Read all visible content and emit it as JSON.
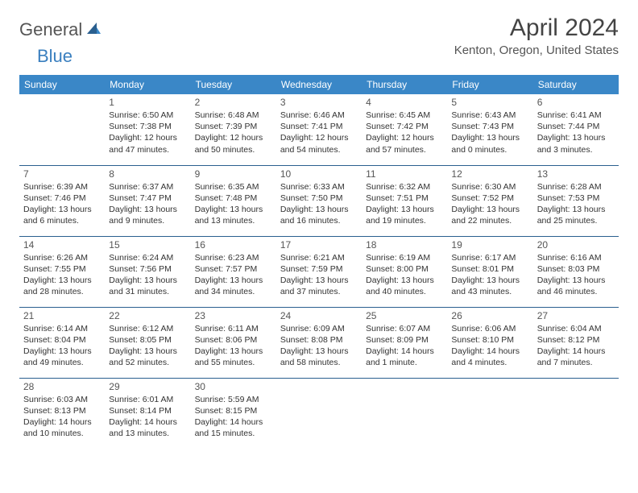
{
  "brand": {
    "part1": "General",
    "part2": "Blue"
  },
  "title": "April 2024",
  "location": "Kenton, Oregon, United States",
  "colors": {
    "header_bg": "#3a87c7",
    "header_text": "#ffffff",
    "rule": "#2a5f8f",
    "body_text": "#333333",
    "daynum": "#555555",
    "brand_gray": "#555555",
    "brand_blue": "#3a7fbf",
    "page_bg": "#ffffff"
  },
  "weekdays": [
    "Sunday",
    "Monday",
    "Tuesday",
    "Wednesday",
    "Thursday",
    "Friday",
    "Saturday"
  ],
  "weeks": [
    [
      null,
      {
        "d": "1",
        "sr": "Sunrise: 6:50 AM",
        "ss": "Sunset: 7:38 PM",
        "dl": "Daylight: 12 hours and 47 minutes."
      },
      {
        "d": "2",
        "sr": "Sunrise: 6:48 AM",
        "ss": "Sunset: 7:39 PM",
        "dl": "Daylight: 12 hours and 50 minutes."
      },
      {
        "d": "3",
        "sr": "Sunrise: 6:46 AM",
        "ss": "Sunset: 7:41 PM",
        "dl": "Daylight: 12 hours and 54 minutes."
      },
      {
        "d": "4",
        "sr": "Sunrise: 6:45 AM",
        "ss": "Sunset: 7:42 PM",
        "dl": "Daylight: 12 hours and 57 minutes."
      },
      {
        "d": "5",
        "sr": "Sunrise: 6:43 AM",
        "ss": "Sunset: 7:43 PM",
        "dl": "Daylight: 13 hours and 0 minutes."
      },
      {
        "d": "6",
        "sr": "Sunrise: 6:41 AM",
        "ss": "Sunset: 7:44 PM",
        "dl": "Daylight: 13 hours and 3 minutes."
      }
    ],
    [
      {
        "d": "7",
        "sr": "Sunrise: 6:39 AM",
        "ss": "Sunset: 7:46 PM",
        "dl": "Daylight: 13 hours and 6 minutes."
      },
      {
        "d": "8",
        "sr": "Sunrise: 6:37 AM",
        "ss": "Sunset: 7:47 PM",
        "dl": "Daylight: 13 hours and 9 minutes."
      },
      {
        "d": "9",
        "sr": "Sunrise: 6:35 AM",
        "ss": "Sunset: 7:48 PM",
        "dl": "Daylight: 13 hours and 13 minutes."
      },
      {
        "d": "10",
        "sr": "Sunrise: 6:33 AM",
        "ss": "Sunset: 7:50 PM",
        "dl": "Daylight: 13 hours and 16 minutes."
      },
      {
        "d": "11",
        "sr": "Sunrise: 6:32 AM",
        "ss": "Sunset: 7:51 PM",
        "dl": "Daylight: 13 hours and 19 minutes."
      },
      {
        "d": "12",
        "sr": "Sunrise: 6:30 AM",
        "ss": "Sunset: 7:52 PM",
        "dl": "Daylight: 13 hours and 22 minutes."
      },
      {
        "d": "13",
        "sr": "Sunrise: 6:28 AM",
        "ss": "Sunset: 7:53 PM",
        "dl": "Daylight: 13 hours and 25 minutes."
      }
    ],
    [
      {
        "d": "14",
        "sr": "Sunrise: 6:26 AM",
        "ss": "Sunset: 7:55 PM",
        "dl": "Daylight: 13 hours and 28 minutes."
      },
      {
        "d": "15",
        "sr": "Sunrise: 6:24 AM",
        "ss": "Sunset: 7:56 PM",
        "dl": "Daylight: 13 hours and 31 minutes."
      },
      {
        "d": "16",
        "sr": "Sunrise: 6:23 AM",
        "ss": "Sunset: 7:57 PM",
        "dl": "Daylight: 13 hours and 34 minutes."
      },
      {
        "d": "17",
        "sr": "Sunrise: 6:21 AM",
        "ss": "Sunset: 7:59 PM",
        "dl": "Daylight: 13 hours and 37 minutes."
      },
      {
        "d": "18",
        "sr": "Sunrise: 6:19 AM",
        "ss": "Sunset: 8:00 PM",
        "dl": "Daylight: 13 hours and 40 minutes."
      },
      {
        "d": "19",
        "sr": "Sunrise: 6:17 AM",
        "ss": "Sunset: 8:01 PM",
        "dl": "Daylight: 13 hours and 43 minutes."
      },
      {
        "d": "20",
        "sr": "Sunrise: 6:16 AM",
        "ss": "Sunset: 8:03 PM",
        "dl": "Daylight: 13 hours and 46 minutes."
      }
    ],
    [
      {
        "d": "21",
        "sr": "Sunrise: 6:14 AM",
        "ss": "Sunset: 8:04 PM",
        "dl": "Daylight: 13 hours and 49 minutes."
      },
      {
        "d": "22",
        "sr": "Sunrise: 6:12 AM",
        "ss": "Sunset: 8:05 PM",
        "dl": "Daylight: 13 hours and 52 minutes."
      },
      {
        "d": "23",
        "sr": "Sunrise: 6:11 AM",
        "ss": "Sunset: 8:06 PM",
        "dl": "Daylight: 13 hours and 55 minutes."
      },
      {
        "d": "24",
        "sr": "Sunrise: 6:09 AM",
        "ss": "Sunset: 8:08 PM",
        "dl": "Daylight: 13 hours and 58 minutes."
      },
      {
        "d": "25",
        "sr": "Sunrise: 6:07 AM",
        "ss": "Sunset: 8:09 PM",
        "dl": "Daylight: 14 hours and 1 minute."
      },
      {
        "d": "26",
        "sr": "Sunrise: 6:06 AM",
        "ss": "Sunset: 8:10 PM",
        "dl": "Daylight: 14 hours and 4 minutes."
      },
      {
        "d": "27",
        "sr": "Sunrise: 6:04 AM",
        "ss": "Sunset: 8:12 PM",
        "dl": "Daylight: 14 hours and 7 minutes."
      }
    ],
    [
      {
        "d": "28",
        "sr": "Sunrise: 6:03 AM",
        "ss": "Sunset: 8:13 PM",
        "dl": "Daylight: 14 hours and 10 minutes."
      },
      {
        "d": "29",
        "sr": "Sunrise: 6:01 AM",
        "ss": "Sunset: 8:14 PM",
        "dl": "Daylight: 14 hours and 13 minutes."
      },
      {
        "d": "30",
        "sr": "Sunrise: 5:59 AM",
        "ss": "Sunset: 8:15 PM",
        "dl": "Daylight: 14 hours and 15 minutes."
      },
      null,
      null,
      null,
      null
    ]
  ]
}
